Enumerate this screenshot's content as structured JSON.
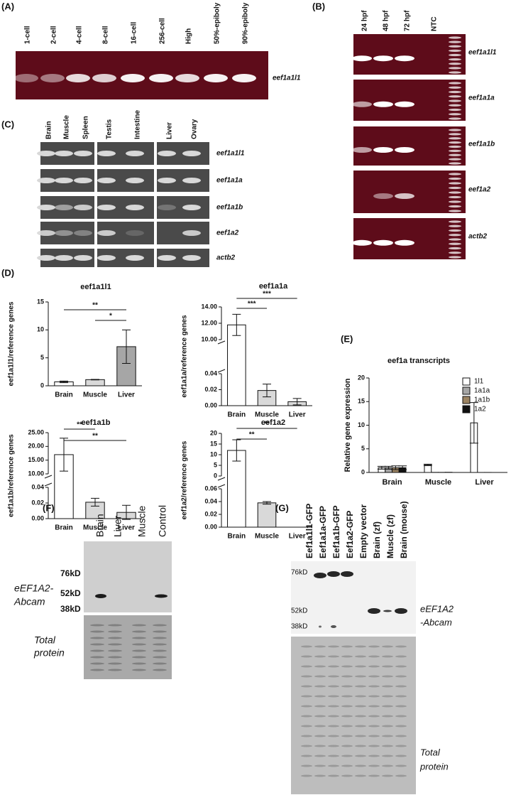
{
  "panels": {
    "A": {
      "label": "(A)",
      "lanes": [
        "1-cell",
        "2-cell",
        "4-cell",
        "8-cell",
        "16-cell",
        "256-cell",
        "High",
        "50%-epiboly",
        "90%-epiboly"
      ],
      "gene": "eef1a1l1"
    },
    "B": {
      "label": "(B)",
      "lanes": [
        "24 hpf",
        "48 hpf",
        "72 hpf",
        "NTC"
      ],
      "genes": [
        "eef1a1l1",
        "eef1a1a",
        "eef1a1b",
        "eef1a2",
        "actb2"
      ]
    },
    "C": {
      "label": "(C)",
      "lanes": [
        "Brain",
        "Muscle",
        "Spleen",
        "Testis",
        "Intestine",
        "Liver",
        "Ovary"
      ],
      "genes": [
        "eef1a1l1",
        "eef1a1a",
        "eef1a1b",
        "eef1a2",
        "actb2"
      ]
    },
    "D": {
      "label": "(D)"
    },
    "E": {
      "label": "(E)"
    },
    "F": {
      "label": "(F)",
      "lanes": [
        "Brain",
        "Liver",
        "Muscle",
        "Control"
      ],
      "markers": [
        "76kD",
        "52kD",
        "38kD"
      ],
      "antibody": [
        "eEF1A2-",
        "Abcam"
      ],
      "loading": [
        "Total",
        "protein"
      ]
    },
    "G": {
      "label": "(G)",
      "lanes": [
        "Eef1a1l1-GFP",
        "Eef1a1a-GFP",
        "Eef1a1b-GFP",
        "Eef1a2-GFP",
        "Empty vector",
        "Brain (zf)",
        "Muscle (zf)",
        "Brain (mouse)"
      ],
      "markers": [
        "76kD",
        "52kD",
        "38kD"
      ],
      "antibody": [
        "eEF1A2",
        "-Abcam"
      ],
      "loading": [
        "Total",
        "protein"
      ]
    }
  },
  "chart_data": [
    {
      "type": "bar",
      "title": "eef1a1l1",
      "ylabel": "eef1a1l1/reference genes",
      "categories": [
        "Brain",
        "Muscle",
        "Liver"
      ],
      "values": [
        0.7,
        1.1,
        7.0
      ],
      "errors": [
        0.15,
        0.05,
        3.0
      ],
      "colors": [
        "#ffffff",
        "#d9d9d9",
        "#a6a6a6"
      ],
      "ylim": [
        0,
        15
      ],
      "yticks": [
        0,
        5,
        10,
        15
      ],
      "significance": [
        "**",
        "*"
      ]
    },
    {
      "type": "broken-bar",
      "title": "eef1a1a",
      "ylabel": "eef1a1a/reference genes",
      "categories": [
        "Brain",
        "Muscle",
        "Liver"
      ],
      "values": [
        11.8,
        0.019,
        0.005
      ],
      "errors": [
        1.3,
        0.008,
        0.004
      ],
      "colors": [
        "#ffffff",
        "#d9d9d9",
        "#d9d9d9"
      ],
      "segments": [
        {
          "ylim": [
            0,
            0.04
          ],
          "yticks": [
            {
              "value": 0,
              "label": "0.00"
            },
            {
              "value": 0.02,
              "label": "0.02"
            },
            {
              "value": 0.04,
              "label": "0.04"
            }
          ]
        },
        {
          "ylim": [
            10,
            14
          ],
          "yticks": [
            {
              "value": 10,
              "label": "10.00"
            },
            {
              "value": 12,
              "label": "12.00"
            },
            {
              "value": 14,
              "label": "14.00"
            }
          ]
        }
      ],
      "significance": [
        "***",
        "***"
      ]
    },
    {
      "type": "broken-bar",
      "title": "eef1a1b",
      "ylabel": "eef1a1b/reference genes",
      "categories": [
        "Brain",
        "Muscle",
        "Liver"
      ],
      "values": [
        17,
        0.021,
        0.008
      ],
      "errors": [
        6,
        0.005,
        0.009
      ],
      "colors": [
        "#ffffff",
        "#d9d9d9",
        "#d9d9d9"
      ],
      "segments": [
        {
          "ylim": [
            0,
            0.04
          ],
          "yticks": [
            {
              "value": 0,
              "label": "0.00"
            },
            {
              "value": 0.02,
              "label": "0.02"
            },
            {
              "value": 0.04,
              "label": "0.04"
            }
          ]
        },
        {
          "ylim": [
            10,
            25
          ],
          "yticks": [
            {
              "value": 10,
              "label": "10.00"
            },
            {
              "value": 15,
              "label": "15.00"
            },
            {
              "value": 20,
              "label": "20.00"
            },
            {
              "value": 25,
              "label": "25.00"
            }
          ]
        }
      ],
      "significance": [
        "**",
        "**"
      ]
    },
    {
      "type": "broken-bar",
      "title": "eef1a2",
      "ylabel": "eef1a2/reference genes",
      "categories": [
        "Brain",
        "Muscle",
        "Liver"
      ],
      "values": [
        12,
        0.038,
        0
      ],
      "errors": [
        5,
        0.002,
        null
      ],
      "colors": [
        "#ffffff",
        "#d9d9d9",
        "#d9d9d9"
      ],
      "segments": [
        {
          "ylim": [
            0,
            0.06
          ],
          "yticks": [
            {
              "value": 0,
              "label": "0.00"
            },
            {
              "value": 0.02,
              "label": "0.02"
            },
            {
              "value": 0.04,
              "label": "0.04"
            },
            {
              "value": 0.06,
              "label": "0.06"
            }
          ]
        },
        {
          "ylim": [
            0,
            20
          ],
          "yticks": [
            0,
            5,
            10,
            15,
            20
          ]
        }
      ],
      "significance": [
        "**",
        "**"
      ]
    },
    {
      "type": "grouped-bar",
      "title": "eef1a transcripts",
      "ylabel": "Relative gene expression",
      "categories": [
        "Brain",
        "Muscle",
        "Liver"
      ],
      "ylim": [
        0,
        20
      ],
      "yticks": [
        0,
        5,
        10,
        15,
        20
      ],
      "series": [
        {
          "name": "1l1",
          "color": "#ffffff",
          "values": [
            1.0,
            1.6,
            10.5
          ],
          "errors": [
            0.3,
            0.15,
            4.3
          ]
        },
        {
          "name": "1a1a",
          "color": "#a6a6a6",
          "values": [
            1.0,
            0.02,
            0.005
          ],
          "errors": [
            0.3,
            null,
            null
          ]
        },
        {
          "name": "1a1b",
          "color": "#9c8462",
          "values": [
            1.0,
            0.02,
            0.008
          ],
          "errors": [
            0.4,
            null,
            null
          ]
        },
        {
          "name": "1a2",
          "color": "#111111",
          "values": [
            1.0,
            0.04,
            0
          ],
          "errors": [
            0.4,
            null,
            null
          ]
        }
      ]
    }
  ]
}
